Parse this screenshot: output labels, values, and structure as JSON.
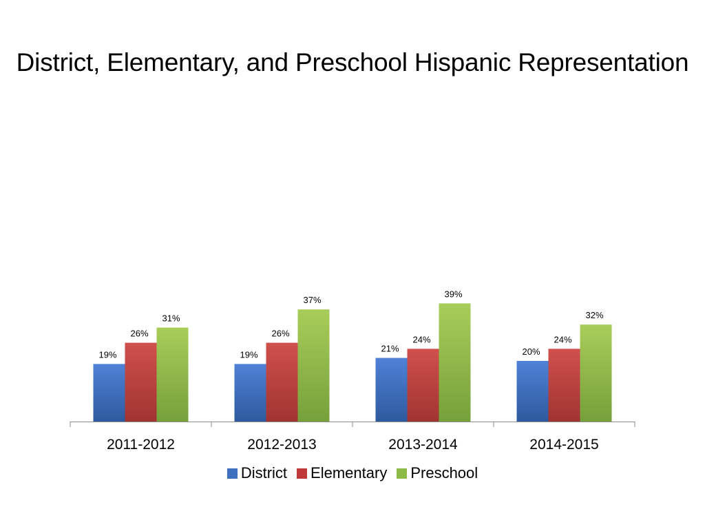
{
  "chart_data": {
    "type": "bar",
    "title": "District, Elementary, and Preschool Hispanic Representation",
    "categories": [
      "2011-2012",
      "2012-2013",
      "2013-2014",
      "2014-2015"
    ],
    "series": [
      {
        "name": "District",
        "color": "#4472C4",
        "values": [
          19,
          19,
          21,
          20
        ],
        "labels": [
          "19%",
          "19%",
          "21%",
          "20%"
        ]
      },
      {
        "name": "Elementary",
        "color": "#C0504D",
        "values": [
          26,
          26,
          24,
          24
        ],
        "labels": [
          "26%",
          "26%",
          "24%",
          "24%"
        ]
      },
      {
        "name": "Preschool",
        "color": "#9BBB59",
        "values": [
          31,
          37,
          39,
          32
        ],
        "labels": [
          "31%",
          "37%",
          "39%",
          "32%"
        ]
      }
    ],
    "xlabel": "",
    "ylabel": "",
    "ylim": [
      0,
      100
    ],
    "grid": false,
    "legend": "bottom"
  }
}
